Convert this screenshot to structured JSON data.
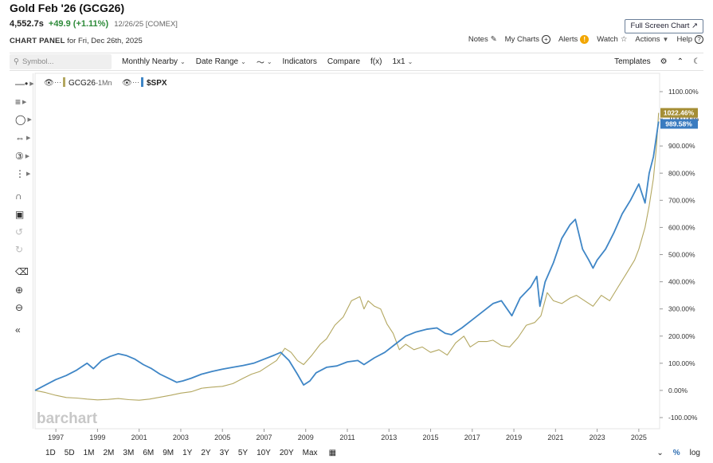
{
  "header": {
    "title": "Gold Feb '26 (GCG26)",
    "price": "4,552.7s",
    "change": "+49.9 (+1.11%)",
    "meta": "12/26/25 [COMEX]",
    "panel_label": "CHART PANEL",
    "panel_date": "for Fri, Dec 26th, 2025",
    "fullscreen_label": "Full Screen Chart"
  },
  "top_links": {
    "notes": "Notes",
    "my_charts": "My Charts",
    "alerts": "Alerts",
    "watch": "Watch",
    "actions": "Actions",
    "help": "Help"
  },
  "toolbar": {
    "search_placeholder": "Symbol...",
    "period": "Monthly Nearby",
    "date_range": "Date Range",
    "indicators": "Indicators",
    "compare": "Compare",
    "fx": "f(x)",
    "layout": "1x1",
    "templates": "Templates"
  },
  "legend": {
    "symbol1": "GCG26",
    "symbol1_period": "-1Mn",
    "symbol2": "$SPX"
  },
  "watermark": "barchart",
  "bottom": {
    "ranges": [
      "1D",
      "5D",
      "1M",
      "2M",
      "3M",
      "6M",
      "9M",
      "1Y",
      "2Y",
      "3Y",
      "5Y",
      "10Y",
      "20Y",
      "Max"
    ],
    "pct_label": "%",
    "log_label": "log"
  },
  "colors": {
    "gold": "#b3a760",
    "spx": "#3f86c6",
    "gold_tag": "#a58e35",
    "spx_tag": "#3a7bc0"
  },
  "chart_data": {
    "type": "line",
    "x_ticks": [
      "1997",
      "1999",
      "2001",
      "2003",
      "2005",
      "2007",
      "2009",
      "2011",
      "2013",
      "2015",
      "2017",
      "2019",
      "2021",
      "2023",
      "2025"
    ],
    "y_ticks": [
      "1100.00%",
      "1000.00%",
      "900.00%",
      "800.00%",
      "700.00%",
      "600.00%",
      "500.00%",
      "400.00%",
      "300.00%",
      "200.00%",
      "100.00%",
      "0.00%",
      "-100.00%"
    ],
    "ylim": [
      -100,
      1100
    ],
    "xlim": [
      1996.0,
      2026.0
    ],
    "last_values": {
      "gold": "1022.46%",
      "spx": "989.58%"
    },
    "series": [
      {
        "name": "GCG26",
        "x": [
          1996.0,
          1996.5,
          1997.0,
          1997.5,
          1998.0,
          1998.5,
          1999.0,
          1999.5,
          2000.0,
          2000.5,
          2001.0,
          2001.5,
          2002.0,
          2002.5,
          2003.0,
          2003.5,
          2004.0,
          2004.5,
          2005.0,
          2005.5,
          2006.0,
          2006.4,
          2006.8,
          2007.2,
          2007.6,
          2008.0,
          2008.3,
          2008.6,
          2008.9,
          2009.3,
          2009.7,
          2010.0,
          2010.4,
          2010.8,
          2011.2,
          2011.6,
          2011.8,
          2012.0,
          2012.3,
          2012.6,
          2012.9,
          2013.2,
          2013.5,
          2013.8,
          2014.2,
          2014.6,
          2015.0,
          2015.4,
          2015.8,
          2016.2,
          2016.6,
          2016.9,
          2017.3,
          2017.7,
          2018.0,
          2018.4,
          2018.8,
          2019.2,
          2019.6,
          2020.0,
          2020.3,
          2020.6,
          2020.9,
          2021.3,
          2021.7,
          2022.0,
          2022.4,
          2022.8,
          2023.2,
          2023.6,
          2024.0,
          2024.4,
          2024.8,
          2025.0,
          2025.3,
          2025.5,
          2025.7,
          2025.85,
          2025.95
        ],
        "y": [
          0,
          -8,
          -18,
          -26,
          -28,
          -32,
          -35,
          -33,
          -30,
          -34,
          -36,
          -32,
          -25,
          -18,
          -10,
          -5,
          8,
          12,
          15,
          25,
          45,
          60,
          70,
          90,
          110,
          155,
          140,
          110,
          95,
          130,
          170,
          190,
          240,
          270,
          330,
          345,
          300,
          330,
          310,
          300,
          245,
          210,
          150,
          170,
          150,
          160,
          140,
          150,
          130,
          175,
          200,
          160,
          180,
          180,
          185,
          165,
          160,
          195,
          240,
          250,
          275,
          360,
          330,
          320,
          340,
          350,
          330,
          310,
          350,
          330,
          380,
          430,
          480,
          520,
          600,
          680,
          780,
          900,
          1022
        ]
      },
      {
        "name": "$SPX",
        "x": [
          1996.0,
          1996.5,
          1997.0,
          1997.5,
          1998.0,
          1998.5,
          1998.8,
          1999.2,
          1999.6,
          2000.0,
          2000.4,
          2000.8,
          2001.2,
          2001.6,
          2002.0,
          2002.4,
          2002.8,
          2003.1,
          2003.5,
          2004.0,
          2004.5,
          2005.0,
          2005.5,
          2006.0,
          2006.5,
          2007.0,
          2007.5,
          2007.8,
          2008.2,
          2008.6,
          2008.9,
          2009.2,
          2009.5,
          2010.0,
          2010.5,
          2011.0,
          2011.5,
          2011.8,
          2012.3,
          2012.8,
          2013.3,
          2013.8,
          2014.3,
          2014.8,
          2015.3,
          2015.7,
          2016.0,
          2016.5,
          2017.0,
          2017.5,
          2018.0,
          2018.4,
          2018.9,
          2019.3,
          2019.8,
          2020.1,
          2020.25,
          2020.5,
          2020.9,
          2021.3,
          2021.7,
          2021.95,
          2022.3,
          2022.6,
          2022.8,
          2023.0,
          2023.4,
          2023.8,
          2024.2,
          2024.6,
          2025.0,
          2025.3,
          2025.5,
          2025.7,
          2025.95
        ],
        "y": [
          0,
          20,
          40,
          55,
          75,
          100,
          80,
          110,
          125,
          135,
          128,
          115,
          95,
          80,
          60,
          45,
          30,
          35,
          45,
          60,
          70,
          78,
          85,
          92,
          100,
          115,
          130,
          140,
          110,
          60,
          20,
          35,
          65,
          85,
          90,
          105,
          110,
          95,
          120,
          140,
          170,
          200,
          215,
          225,
          230,
          210,
          205,
          230,
          260,
          290,
          320,
          330,
          275,
          340,
          380,
          420,
          310,
          400,
          470,
          560,
          610,
          630,
          520,
          480,
          450,
          480,
          520,
          580,
          650,
          700,
          760,
          690,
          800,
          860,
          990
        ]
      }
    ]
  }
}
